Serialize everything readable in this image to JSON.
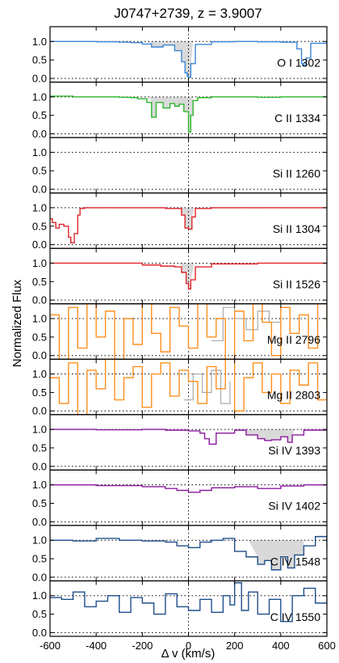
{
  "chart_data": {
    "type": "line",
    "title": "J0747+2739, z = 3.9007",
    "xlabel": "Δ v (km/s)",
    "ylabel": "Normalized Flux",
    "xlim": [
      -600,
      600
    ],
    "ylim": [
      -0.1,
      1.4
    ],
    "xticks": [
      -600,
      -400,
      -200,
      0,
      200,
      400,
      600
    ],
    "yticks": [
      0.0,
      0.5,
      1.0
    ],
    "xtick_labels": [
      "-600",
      "-400",
      "-200",
      "0",
      "200",
      "400",
      "600"
    ],
    "ytick_labels": [
      "0.0",
      "0.5",
      "1.0"
    ],
    "reference_lines": {
      "continuum": 1.0,
      "zero": 0.0,
      "velocity_zero": 0
    },
    "panels": [
      {
        "label": "O I 1302",
        "color": "#3a86d8",
        "flux": {
          "x": [
            -600,
            -500,
            -400,
            -300,
            -250,
            -200,
            -160,
            -110,
            -60,
            -30,
            -15,
            -5,
            0,
            10,
            30,
            100,
            200,
            300,
            400,
            470,
            490,
            500,
            510,
            530,
            600
          ],
          "y": [
            1.0,
            1.0,
            0.99,
            0.98,
            0.97,
            0.93,
            0.85,
            0.9,
            0.75,
            0.45,
            0.15,
            0.05,
            0.03,
            0.4,
            0.92,
            0.99,
            1.0,
            0.99,
            0.98,
            0.8,
            0.4,
            0.35,
            0.55,
            0.95,
            1.0
          ]
        },
        "absorption_region": [
          -180,
          20
        ]
      },
      {
        "label": "C II 1334",
        "color": "#2db82d",
        "flux": {
          "x": [
            -600,
            -500,
            -400,
            -300,
            -250,
            -220,
            -180,
            -160,
            -140,
            -110,
            -80,
            -60,
            -40,
            -20,
            0,
            10,
            20,
            40,
            100,
            200,
            300,
            400,
            500,
            600
          ],
          "y": [
            1.02,
            1.0,
            1.0,
            0.99,
            0.98,
            0.95,
            0.85,
            0.45,
            0.85,
            0.7,
            0.82,
            0.75,
            0.8,
            0.6,
            0.05,
            0.5,
            0.9,
            0.98,
            1.0,
            1.0,
            0.99,
            1.0,
            1.0,
            1.0
          ]
        },
        "absorption_region": [
          -170,
          20
        ]
      },
      {
        "label": "Si II 1260",
        "color": "#e0242b",
        "flux": null,
        "absorption_region": null
      },
      {
        "label": "Si II 1304",
        "color": "#e0242b",
        "flux": {
          "x": [
            -600,
            -590,
            -575,
            -560,
            -540,
            -520,
            -510,
            -495,
            -480,
            -470,
            -450,
            -300,
            -100,
            -30,
            -15,
            0,
            15,
            30,
            100,
            300,
            500,
            600
          ],
          "y": [
            0.7,
            0.6,
            0.45,
            0.55,
            0.5,
            0.2,
            0.05,
            0.3,
            0.8,
            0.98,
            1.0,
            1.0,
            0.98,
            0.8,
            0.45,
            0.42,
            0.75,
            0.98,
            1.0,
            1.0,
            1.0,
            1.0
          ]
        },
        "absorption_region": [
          -40,
          25
        ]
      },
      {
        "label": "Si II 1526",
        "color": "#e0242b",
        "flux": {
          "x": [
            -600,
            -400,
            -200,
            -120,
            -60,
            -30,
            -10,
            0,
            10,
            30,
            100,
            300,
            500,
            600
          ],
          "y": [
            1.0,
            1.0,
            0.95,
            0.92,
            0.9,
            0.75,
            0.45,
            0.3,
            0.55,
            0.9,
            0.98,
            1.0,
            1.0,
            1.0
          ]
        },
        "absorption_region": [
          -40,
          25
        ]
      },
      {
        "label": "Mg II 2796",
        "color": "#ff8f1f",
        "flux": {
          "x": [
            -600,
            -560,
            -520,
            -480,
            -440,
            -400,
            -360,
            -320,
            -280,
            -240,
            -200,
            -160,
            -120,
            -80,
            -40,
            0,
            40,
            80,
            120,
            160,
            200,
            240,
            280,
            320,
            360,
            400,
            440,
            480,
            520,
            560,
            600
          ],
          "y": [
            1.1,
            -0.1,
            1.3,
            0.2,
            1.4,
            0.5,
            1.2,
            -0.1,
            1.0,
            0.3,
            1.4,
            0.6,
            0.1,
            1.3,
            0.8,
            0.2,
            1.4,
            0.5,
            1.0,
            -0.1,
            1.2,
            0.4,
            1.4,
            0.9,
            0.0,
            1.3,
            0.6,
            1.1,
            0.2,
            1.4,
            0.8
          ]
        },
        "error": {
          "x": [
            100,
            150,
            200,
            250,
            300,
            350,
            400
          ],
          "y": [
            0.4,
            1.3,
            1.0,
            0.7,
            1.2,
            0.9,
            1.1
          ]
        },
        "absorption_region": null
      },
      {
        "label": "Mg II 2803",
        "color": "#ff8f1f",
        "flux": {
          "x": [
            -600,
            -560,
            -520,
            -480,
            -440,
            -400,
            -360,
            -320,
            -280,
            -240,
            -200,
            -160,
            -120,
            -80,
            -40,
            0,
            40,
            80,
            120,
            160,
            200,
            240,
            280,
            320,
            360,
            400,
            440,
            480,
            520,
            560,
            600
          ],
          "y": [
            0.9,
            0.2,
            1.3,
            -0.1,
            1.1,
            0.6,
            1.4,
            0.3,
            0.9,
            1.2,
            0.1,
            1.0,
            1.3,
            0.4,
            1.1,
            0.8,
            0.2,
            1.2,
            0.6,
            1.4,
            0.0,
            0.9,
            1.3,
            0.5,
            1.0,
            0.2,
            1.1,
            0.7,
            1.3,
            0.3,
            1.0
          ]
        },
        "error": {
          "x": [
            -20,
            20,
            60,
            100,
            140,
            180
          ],
          "y": [
            0.3,
            1.0,
            0.5,
            1.1,
            0.2,
            0.8
          ]
        },
        "absorption_region": null
      },
      {
        "label": "Si IV 1393",
        "color": "#8b1a9e",
        "flux": {
          "x": [
            -600,
            -400,
            -200,
            -100,
            0,
            50,
            70,
            90,
            120,
            200,
            250,
            300,
            330,
            360,
            400,
            430,
            450,
            500,
            600
          ],
          "y": [
            1.0,
            0.99,
            1.0,
            0.98,
            0.96,
            0.9,
            0.75,
            0.6,
            0.9,
            0.98,
            0.85,
            0.75,
            0.7,
            0.72,
            0.8,
            0.65,
            0.85,
            0.98,
            1.0
          ]
        },
        "absorption_region": [
          250,
          460
        ]
      },
      {
        "label": "Si IV 1402",
        "color": "#8b1a9e",
        "flux": {
          "x": [
            -600,
            -400,
            -200,
            -100,
            -50,
            0,
            50,
            100,
            200,
            300,
            400,
            500,
            600
          ],
          "y": [
            1.0,
            0.98,
            0.95,
            0.9,
            0.85,
            0.8,
            0.85,
            0.92,
            0.95,
            0.9,
            0.97,
            1.0,
            0.98
          ]
        },
        "absorption_region": null
      },
      {
        "label": "C IV 1548",
        "color": "#1f4e8c",
        "flux": {
          "x": [
            -600,
            -500,
            -400,
            -300,
            -200,
            -100,
            -50,
            0,
            50,
            100,
            150,
            200,
            250,
            300,
            330,
            360,
            400,
            430,
            460,
            500,
            550,
            600
          ],
          "y": [
            1.0,
            0.98,
            1.05,
            1.0,
            0.98,
            0.95,
            0.85,
            0.8,
            0.95,
            1.0,
            1.05,
            0.7,
            0.55,
            0.35,
            0.45,
            0.2,
            0.55,
            0.25,
            0.6,
            0.85,
            1.1,
            0.8
          ]
        },
        "absorption_region": [
          260,
          500
        ]
      },
      {
        "label": "C IV 1550",
        "color": "#1f4e8c",
        "flux": {
          "x": [
            -600,
            -550,
            -500,
            -450,
            -400,
            -350,
            -300,
            -250,
            -200,
            -150,
            -100,
            -50,
            0,
            50,
            100,
            150,
            180,
            200,
            230,
            260,
            300,
            350,
            400,
            450,
            500,
            550,
            600
          ],
          "y": [
            0.95,
            0.9,
            1.1,
            0.7,
            0.85,
            1.0,
            0.55,
            0.95,
            0.8,
            0.5,
            1.05,
            0.7,
            0.6,
            0.9,
            0.55,
            1.0,
            0.75,
            1.35,
            0.6,
            1.1,
            0.5,
            0.9,
            0.3,
            1.0,
            1.2,
            0.8,
            1.0
          ]
        },
        "absorption_region": null
      }
    ]
  }
}
